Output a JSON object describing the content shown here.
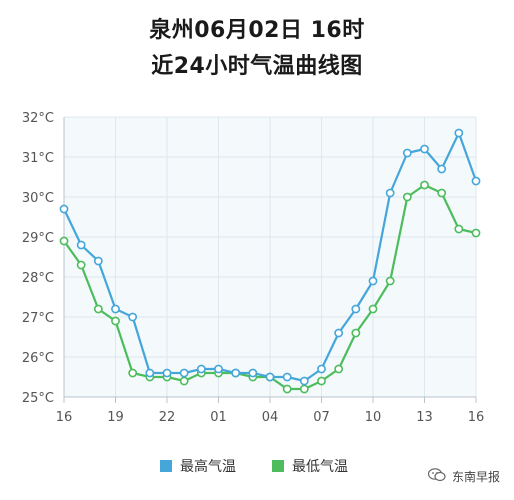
{
  "title": {
    "line1": "泉州06月02日 16时",
    "line2": "近24小时气温曲线图"
  },
  "legend": {
    "high_label": "最高气温",
    "low_label": "最低气温"
  },
  "watermark": {
    "text": "东南早报"
  },
  "colors": {
    "high": "#45a6da",
    "low": "#4cbc5c",
    "plot_bg": "#f4f9fc",
    "grid": "#dde8ef",
    "axis": "#b8c4cc",
    "tick_text": "#555555",
    "marker_fill": "#ffffff"
  },
  "chart_data": {
    "type": "line",
    "x": [
      "16",
      "17",
      "18",
      "19",
      "20",
      "21",
      "22",
      "23",
      "00",
      "01",
      "02",
      "03",
      "04",
      "05",
      "06",
      "07",
      "08",
      "09",
      "10",
      "11",
      "12",
      "13",
      "14",
      "15",
      "16"
    ],
    "x_tick_labels": [
      "16",
      "19",
      "22",
      "01",
      "04",
      "07",
      "10",
      "13",
      "16"
    ],
    "y_tick_labels": [
      "25°C",
      "26°C",
      "27°C",
      "28°C",
      "29°C",
      "30°C",
      "31°C",
      "32°C"
    ],
    "ylim": [
      25,
      32
    ],
    "grid": true,
    "legend_position": "bottom",
    "series": [
      {
        "name": "最高气温",
        "color": "#45a6da",
        "values": [
          29.7,
          28.8,
          28.4,
          27.2,
          27.0,
          25.6,
          25.6,
          25.6,
          25.7,
          25.7,
          25.6,
          25.6,
          25.5,
          25.5,
          25.4,
          25.7,
          26.6,
          27.2,
          27.9,
          30.1,
          31.1,
          31.2,
          30.7,
          31.6,
          30.4
        ]
      },
      {
        "name": "最低气温",
        "color": "#4cbc5c",
        "values": [
          28.9,
          28.3,
          27.2,
          26.9,
          25.6,
          25.5,
          25.5,
          25.4,
          25.6,
          25.6,
          25.6,
          25.5,
          25.5,
          25.2,
          25.2,
          25.4,
          25.7,
          26.6,
          27.2,
          27.9,
          30.0,
          30.3,
          30.1,
          29.2,
          29.1
        ]
      }
    ]
  }
}
